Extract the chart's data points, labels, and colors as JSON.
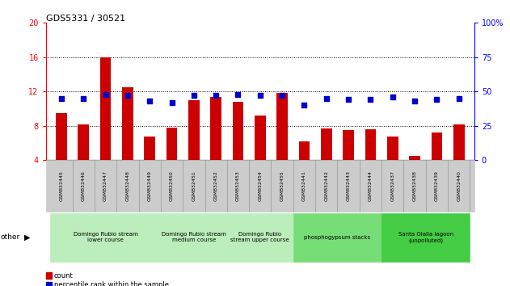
{
  "title": "GDS5331 / 30521",
  "samples": [
    "GSM832445",
    "GSM832446",
    "GSM832447",
    "GSM832448",
    "GSM832449",
    "GSM832450",
    "GSM832451",
    "GSM832452",
    "GSM832453",
    "GSM832454",
    "GSM832455",
    "GSM832441",
    "GSM832442",
    "GSM832443",
    "GSM832444",
    "GSM832437",
    "GSM832438",
    "GSM832439",
    "GSM832440"
  ],
  "counts": [
    9.5,
    8.2,
    16.0,
    12.5,
    6.8,
    7.8,
    11.0,
    11.4,
    10.8,
    9.2,
    11.8,
    6.2,
    7.7,
    7.5,
    7.6,
    6.8,
    4.5,
    7.2,
    8.2
  ],
  "percentile": [
    45,
    45,
    48,
    47,
    43,
    42,
    47,
    47,
    48,
    47,
    47,
    40,
    45,
    44,
    44,
    46,
    43,
    44,
    45
  ],
  "groups": [
    {
      "label": "Domingo Rubio stream\nlower course",
      "start": 0,
      "end": 5,
      "color": "#bbeebb"
    },
    {
      "label": "Domingo Rubio stream\nmedium course",
      "start": 5,
      "end": 8,
      "color": "#bbeebb"
    },
    {
      "label": "Domingo Rubio\nstream upper course",
      "start": 8,
      "end": 11,
      "color": "#bbeebb"
    },
    {
      "label": "phosphogypsum stacks",
      "start": 11,
      "end": 15,
      "color": "#77dd77"
    },
    {
      "label": "Santa Olalla lagoon\n(unpolluted)",
      "start": 15,
      "end": 19,
      "color": "#44cc44"
    }
  ],
  "ylim_left": [
    4,
    20
  ],
  "ylim_right": [
    0,
    100
  ],
  "yticks_left": [
    4,
    8,
    12,
    16,
    20
  ],
  "yticks_right": [
    0,
    25,
    50,
    75,
    100
  ],
  "bar_color": "#cc0000",
  "dot_color": "#0000cc",
  "bar_width": 0.5,
  "dot_size": 20,
  "fig_width": 6.31,
  "fig_height": 3.54
}
